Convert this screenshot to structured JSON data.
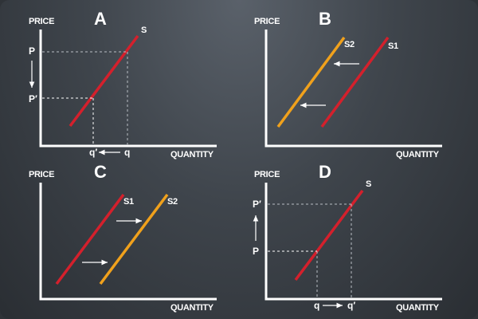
{
  "colors": {
    "supply": "#d4202c",
    "supply_shifted": "#f0a11c"
  },
  "panels": {
    "A": {
      "letter": "A",
      "price_axis": "PRICE",
      "quantity_axis": "QUANTITY",
      "curve": "S",
      "p": "P",
      "p_prime": "P′",
      "q": "q",
      "q_prime": "q′"
    },
    "B": {
      "letter": "B",
      "price_axis": "PRICE",
      "quantity_axis": "QUANTITY",
      "curve_1": "S1",
      "curve_2": "S2"
    },
    "C": {
      "letter": "C",
      "price_axis": "PRICE",
      "quantity_axis": "QUANTITY",
      "curve_1": "S1",
      "curve_2": "S2"
    },
    "D": {
      "letter": "D",
      "price_axis": "PRICE",
      "quantity_axis": "QUANTITY",
      "curve": "S",
      "p": "P",
      "p_prime": "P′",
      "q": "q",
      "q_prime": "q′"
    }
  }
}
